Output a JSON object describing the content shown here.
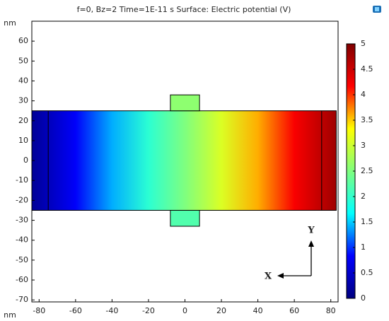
{
  "chart_data": {
    "type": "surface",
    "title": "f=0, Bz=2 Time=1E-11 s   Surface: Electric potential (V)",
    "xlabel": "nm",
    "ylabel": "nm",
    "xlim": [
      -84,
      84
    ],
    "ylim": [
      -71,
      70
    ],
    "xticks": [
      -80,
      -60,
      -40,
      -20,
      0,
      20,
      40,
      60,
      80
    ],
    "yticks": [
      -70,
      -60,
      -50,
      -40,
      -30,
      -20,
      -10,
      0,
      10,
      20,
      30,
      40,
      50,
      60
    ],
    "surface": {
      "x": [
        -84,
        -60,
        -40,
        -20,
        0,
        20,
        40,
        60,
        83
      ],
      "values": [
        0.15,
        0.8,
        1.4,
        1.95,
        2.5,
        3.1,
        3.6,
        4.2,
        4.8
      ],
      "ylim": [
        -25,
        25
      ]
    },
    "electrode_lines": [
      -75,
      75
    ],
    "pads": [
      {
        "x": [
          -8,
          8
        ],
        "y": [
          25,
          33
        ],
        "value": 2.6
      },
      {
        "x": [
          -8,
          8
        ],
        "y": [
          -33,
          -25
        ],
        "value": 2.2
      }
    ],
    "colormap": [
      "#00007f",
      "#0000ff",
      "#00ffff",
      "#7fff7f",
      "#ffff00",
      "#ff0000",
      "#7f0000"
    ],
    "clim": [
      0,
      5
    ],
    "cticks": [
      0,
      0.5,
      1,
      1.5,
      2,
      2.5,
      3,
      3.5,
      4,
      4.5,
      5
    ],
    "triad": {
      "x_label": "X",
      "y_label": "Y"
    }
  }
}
